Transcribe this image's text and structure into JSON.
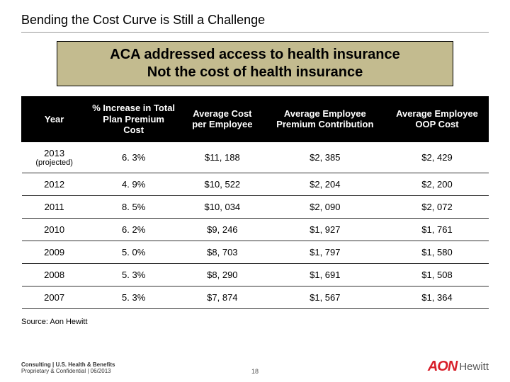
{
  "title": "Bending the Cost Curve is Still a Challenge",
  "callout": {
    "line1": "ACA addressed access to health insurance",
    "line2": "Not the cost of health insurance"
  },
  "table": {
    "columns": [
      "Year",
      "% Increase in Total Plan Premium Cost",
      "Average Cost per Employee",
      "Average Employee Premium Contribution",
      "Average Employee OOP Cost"
    ],
    "col_widths": [
      "14%",
      "20%",
      "18%",
      "26%",
      "22%"
    ],
    "rows": [
      {
        "year": "2013",
        "year_sub": "(projected)",
        "pct": "6. 3%",
        "avg_cost": "$11, 188",
        "premium": "$2, 385",
        "oop": "$2, 429"
      },
      {
        "year": "2012",
        "year_sub": "",
        "pct": "4. 9%",
        "avg_cost": "$10, 522",
        "premium": "$2, 204",
        "oop": "$2, 200"
      },
      {
        "year": "2011",
        "year_sub": "",
        "pct": "8. 5%",
        "avg_cost": "$10, 034",
        "premium": "$2, 090",
        "oop": "$2, 072"
      },
      {
        "year": "2010",
        "year_sub": "",
        "pct": "6. 2%",
        "avg_cost": "$9, 246",
        "premium": "$1, 927",
        "oop": "$1, 761"
      },
      {
        "year": "2009",
        "year_sub": "",
        "pct": "5. 0%",
        "avg_cost": "$8, 703",
        "premium": "$1, 797",
        "oop": "$1, 580"
      },
      {
        "year": "2008",
        "year_sub": "",
        "pct": "5. 3%",
        "avg_cost": "$8, 290",
        "premium": "$1, 691",
        "oop": "$1, 508"
      },
      {
        "year": "2007",
        "year_sub": "",
        "pct": "5. 3%",
        "avg_cost": "$7, 874",
        "premium": "$1, 567",
        "oop": "$1, 364"
      }
    ]
  },
  "source": "Source: Aon Hewitt",
  "footer": {
    "line1": "Consulting | U.S. Health & Benefits",
    "line2": "Proprietary & Confidential | 06/2013",
    "page": "18",
    "logo_aon": "AON",
    "logo_hewitt": "Hewitt"
  },
  "colors": {
    "callout_bg": "#c3bb8f",
    "header_bg": "#000000",
    "header_fg": "#ffffff",
    "logo_red": "#d81f2a"
  }
}
